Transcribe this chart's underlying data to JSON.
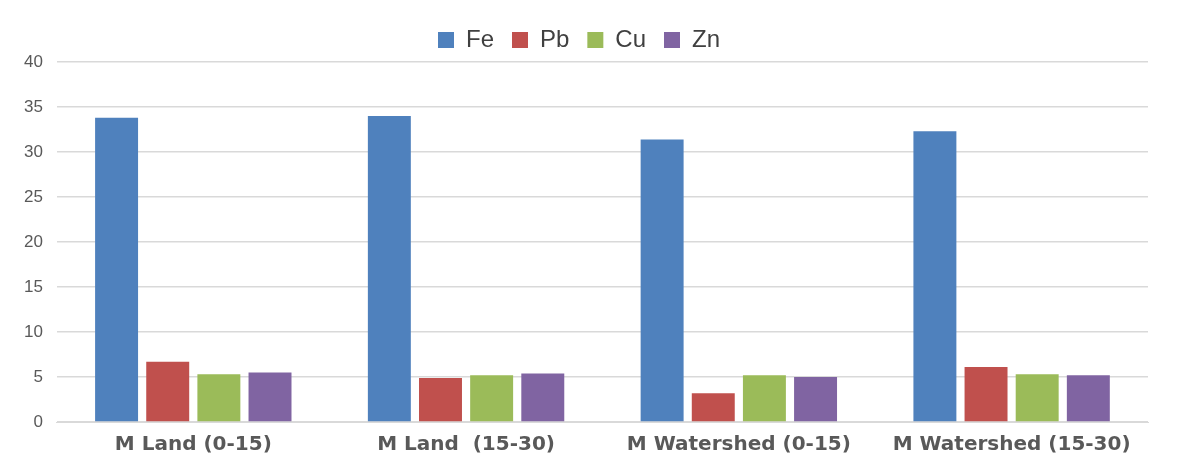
{
  "chart_data": {
    "type": "bar",
    "categories": [
      "M Land (0-15)",
      "M Land  (15-30)",
      "M Watershed (0-15)",
      "M Watershed (15-30)"
    ],
    "series": [
      {
        "name": "Fe",
        "color": "#4f81bd",
        "values": [
          33.8,
          34.0,
          31.4,
          32.3
        ]
      },
      {
        "name": "Pb",
        "color": "#c0504d",
        "values": [
          6.7,
          4.9,
          3.2,
          6.1
        ]
      },
      {
        "name": "Cu",
        "color": "#9bbb59",
        "values": [
          5.3,
          5.2,
          5.2,
          5.3
        ]
      },
      {
        "name": "Zn",
        "color": "#8064a2",
        "values": [
          5.5,
          5.4,
          5.0,
          5.2
        ]
      }
    ],
    "ylim": [
      0,
      40
    ],
    "yticks": [
      0,
      5,
      10,
      15,
      20,
      25,
      30,
      35,
      40
    ],
    "grid": "y",
    "legend": "top"
  }
}
